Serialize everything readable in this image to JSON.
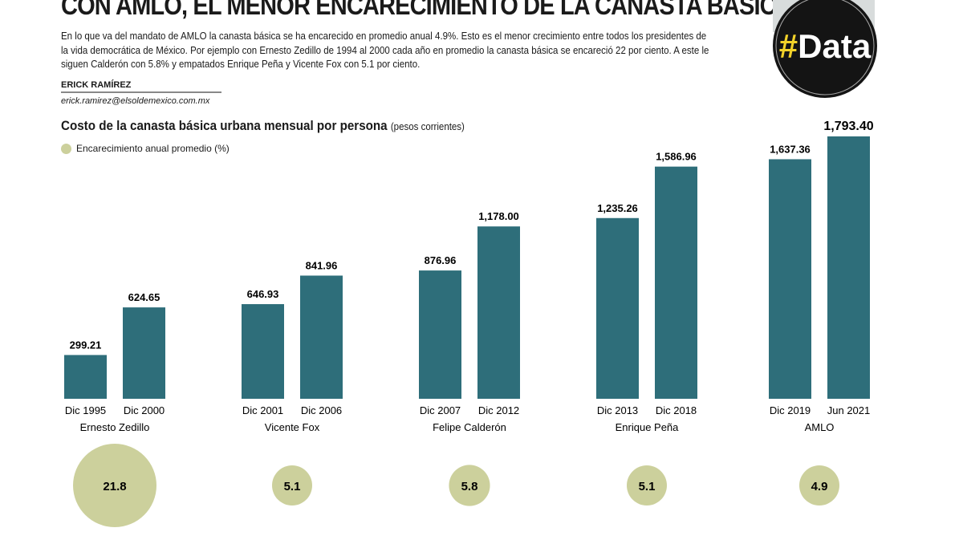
{
  "header": {
    "title": "CON AMLO, EL MENOR ENCARECIMIENTO DE LA CANASTA BÁSICA",
    "intro": "En lo que va del mandato de AMLO la canasta básica se ha encarecido en promedio anual 4.9%. Esto es el menor crecimiento entre todos los presidentes de la vida democrática de México. Por ejemplo con Ernesto Zedillo de 1994 al 2000 cada año en promedio la canasta básica se encareció 22 por ciento. A este le siguen Calderón con 5.8% y empatados Enrique Peña y Vicente Fox con 5.1 por ciento.",
    "author": "ERICK RAMÍREZ",
    "email": "erick.ramirez@elsoldemexico.com.mx",
    "logo_text": "#Data"
  },
  "chart_data": {
    "type": "bar",
    "title": "Costo de la canasta básica urbana mensual por persona",
    "unit": "(pesos corrientes)",
    "legend": "Encarecimiento anual promedio (%)",
    "legend_position": "top-left",
    "grid": false,
    "ylim": [
      0,
      1793.4
    ],
    "colors": {
      "bar": "#2e6e7a",
      "bubble": "#ccd09c"
    },
    "groups": [
      {
        "name": "Ernesto Zedillo",
        "categories": [
          "Dic 1995",
          "Dic 2000"
        ],
        "values": [
          299.21,
          624.65
        ],
        "labels": [
          "299.21",
          "624.65"
        ],
        "annual_increase": 21.8,
        "annual_increase_label": "21.8"
      },
      {
        "name": "Vicente Fox",
        "categories": [
          "Dic 2001",
          "Dic 2006"
        ],
        "values": [
          646.93,
          841.96
        ],
        "labels": [
          "646.93",
          "841.96"
        ],
        "annual_increase": 5.1,
        "annual_increase_label": "5.1"
      },
      {
        "name": "Felipe Calderón",
        "categories": [
          "Dic 2007",
          "Dic 2012"
        ],
        "values": [
          876.96,
          1178.0
        ],
        "labels": [
          "876.96",
          "1,178.00"
        ],
        "annual_increase": 5.8,
        "annual_increase_label": "5.8"
      },
      {
        "name": "Enrique Peña",
        "categories": [
          "Dic 2013",
          "Dic 2018"
        ],
        "values": [
          1235.26,
          1586.96
        ],
        "labels": [
          "1,235.26",
          "1,586.96"
        ],
        "annual_increase": 5.1,
        "annual_increase_label": "5.1"
      },
      {
        "name": "AMLO",
        "categories": [
          "Dic 2019",
          "Jun 2021"
        ],
        "values": [
          1637.36,
          1793.4
        ],
        "labels": [
          "1,637.36",
          "1,793.40"
        ],
        "annual_increase": 4.9,
        "annual_increase_label": "4.9"
      }
    ]
  }
}
